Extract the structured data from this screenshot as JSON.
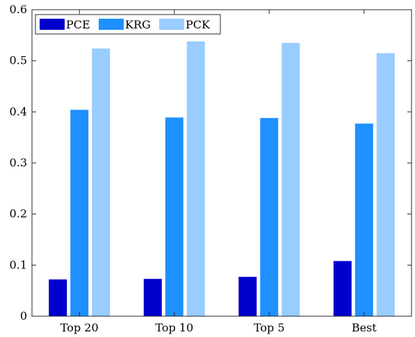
{
  "chart_data": {
    "type": "bar",
    "categories": [
      "Top 20",
      "Top 10",
      "Top 5",
      "Best"
    ],
    "series": [
      {
        "name": "PCE",
        "color": "#0000cc",
        "values": [
          0.072,
          0.073,
          0.077,
          0.108
        ]
      },
      {
        "name": "KRG",
        "color": "#1e90ff",
        "values": [
          0.404,
          0.389,
          0.388,
          0.377
        ]
      },
      {
        "name": "PCK",
        "color": "#99ccff",
        "values": [
          0.524,
          0.538,
          0.535,
          0.515
        ]
      }
    ],
    "ylim": [
      0,
      0.6
    ],
    "yticks": [
      "0",
      "0.1",
      "0.2",
      "0.3",
      "0.4",
      "0.5",
      "0.6"
    ],
    "legend_position": "top-left",
    "grid": false
  }
}
